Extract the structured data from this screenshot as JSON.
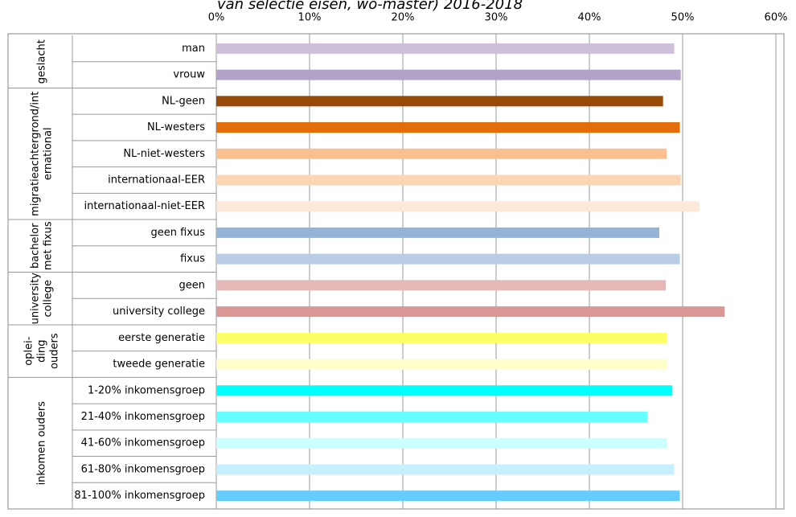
{
  "chart_data": {
    "type": "bar",
    "orientation": "horizontal",
    "title": "van selectie eisen, wo-master) 2016-2018",
    "xlim": [
      0,
      60
    ],
    "xticks": [
      {
        "value": 0,
        "label": "0%"
      },
      {
        "value": 10,
        "label": "10%"
      },
      {
        "value": 20,
        "label": "20%"
      },
      {
        "value": 30,
        "label": "30%"
      },
      {
        "value": 40,
        "label": "40%"
      },
      {
        "value": 50,
        "label": "50%"
      },
      {
        "value": 60,
        "label": "60%"
      }
    ],
    "grid": true,
    "groups": [
      {
        "label": [
          "geslacht"
        ],
        "categories": [
          "man",
          "vrouw"
        ],
        "values": [
          49.1,
          49.8
        ],
        "colors": [
          "#ccc0da",
          "#b3a2c7"
        ]
      },
      {
        "label": [
          "migratieachtergrond/int",
          "ernational"
        ],
        "categories": [
          "NL-geen",
          "NL-westers",
          "NL-niet-westers",
          "internationaal-EER",
          "internationaal-niet-EER"
        ],
        "values": [
          47.9,
          49.7,
          48.3,
          49.8,
          51.8
        ],
        "colors": [
          "#984807",
          "#e46c0a",
          "#fac090",
          "#fcd5b5",
          "#fde9d9"
        ]
      },
      {
        "label": [
          "bachelor",
          "met fixus"
        ],
        "categories": [
          "geen fixus",
          "fixus"
        ],
        "values": [
          47.5,
          49.7
        ],
        "colors": [
          "#95b3d7",
          "#b9cde5"
        ]
      },
      {
        "label": [
          "university",
          "college"
        ],
        "categories": [
          "geen",
          "university college"
        ],
        "values": [
          48.2,
          54.5
        ],
        "colors": [
          "#e6b9b8",
          "#d99694"
        ]
      },
      {
        "label": [
          "oplei-",
          "ding",
          "ouders"
        ],
        "categories": [
          "eerste generatie",
          "tweede generatie"
        ],
        "values": [
          48.3,
          48.3
        ],
        "colors": [
          "#ffff66",
          "#ffffcc"
        ]
      },
      {
        "label": [
          "inkomen ouders"
        ],
        "categories": [
          "1-20% inkomensgroep",
          "21-40% inkomensgroep",
          "41-60% inkomensgroep",
          "61-80% inkomensgroep",
          "81-100% inkomensgroep"
        ],
        "values": [
          48.9,
          46.2,
          48.3,
          49.1,
          49.7
        ],
        "colors": [
          "#00ffff",
          "#66ffff",
          "#ccffff",
          "#c6efff",
          "#66ccff"
        ]
      }
    ]
  }
}
